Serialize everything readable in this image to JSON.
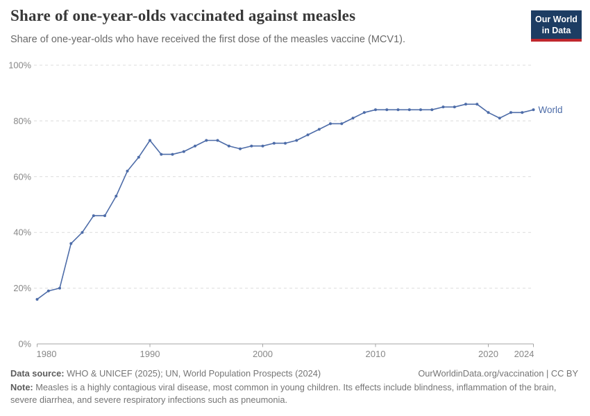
{
  "header": {
    "title": "Share of one-year-olds vaccinated against measles",
    "subtitle": "Share of one-year-olds who have received the first dose of the measles vaccine (MCV1).",
    "logo": {
      "line1": "Our World",
      "line2": "in Data",
      "bg_color": "#1d3d63",
      "accent_color": "#c0272d"
    }
  },
  "chart_data": {
    "type": "line",
    "title": "Share of one-year-olds vaccinated against measles",
    "xlabel": "",
    "ylabel": "",
    "xlim": [
      1980,
      2024
    ],
    "ylim": [
      0,
      100
    ],
    "x": [
      1980,
      1981,
      1982,
      1983,
      1984,
      1985,
      1986,
      1987,
      1988,
      1989,
      1990,
      1991,
      1992,
      1993,
      1994,
      1995,
      1996,
      1997,
      1998,
      1999,
      2000,
      2001,
      2002,
      2003,
      2004,
      2005,
      2006,
      2007,
      2008,
      2009,
      2010,
      2011,
      2012,
      2013,
      2014,
      2015,
      2016,
      2017,
      2018,
      2019,
      2020,
      2021,
      2022,
      2023,
      2024
    ],
    "series": [
      {
        "name": "World",
        "color": "#4d6ca8",
        "values": [
          16,
          19,
          20,
          36,
          40,
          46,
          46,
          53,
          62,
          67,
          73,
          68,
          68,
          69,
          71,
          73,
          73,
          71,
          70,
          71,
          71,
          72,
          72,
          73,
          75,
          77,
          79,
          79,
          81,
          83,
          84,
          84,
          84,
          84,
          84,
          84,
          85,
          85,
          86,
          86,
          83,
          81,
          83,
          83,
          84
        ]
      }
    ],
    "x_ticks": [
      1980,
      1990,
      2000,
      2010,
      2020,
      2024
    ],
    "y_ticks": [
      0,
      20,
      40,
      60,
      80,
      100
    ],
    "y_tick_suffix": "%",
    "grid": {
      "style": "dashed",
      "color": "#dcdcdc"
    },
    "axis_color": "#a5a5a5",
    "tick_label_color": "#878787",
    "legend_position": "end-of-line"
  },
  "footer": {
    "source_label": "Data source:",
    "source_text": " WHO & UNICEF (2025); UN, World Population Prospects (2024)",
    "attribution": "OurWorldinData.org/vaccination | CC BY",
    "note_label": "Note:",
    "note_text": " Measles is a highly contagious viral disease, most common in young children. Its effects include blindness, inflammation of the brain, severe diarrhea, and severe respiratory infections such as pneumonia."
  }
}
